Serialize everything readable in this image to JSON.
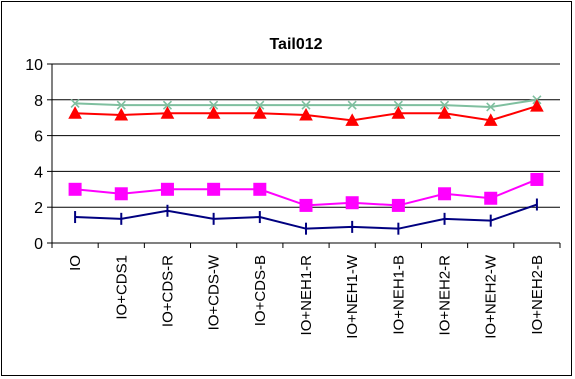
{
  "chart_data": {
    "type": "line",
    "title": "Tail012",
    "xlabel": "",
    "ylabel": "",
    "ylim": [
      0,
      10
    ],
    "yticks": [
      "0",
      "2",
      "4",
      "6",
      "8",
      "10"
    ],
    "grid": "horizontal",
    "legend": "none",
    "categories": [
      "IO",
      "IO+CDS1",
      "IO+CDS-R",
      "IO+CDS-W",
      "IO+CDS-B",
      "IO+NEH1-R",
      "IO+NEH1-W",
      "IO+NEH1-B",
      "IO+NEH2-R",
      "IO+NEH2-W",
      "IO+NEH2-B"
    ],
    "series": [
      {
        "color": "#7fbf9f",
        "marker": "x",
        "values": [
          7.8,
          7.7,
          7.7,
          7.7,
          7.7,
          7.7,
          7.7,
          7.7,
          7.7,
          7.6,
          8.0
        ]
      },
      {
        "color": "#ff0000",
        "marker": "triangle",
        "values": [
          7.25,
          7.15,
          7.25,
          7.25,
          7.25,
          7.15,
          6.85,
          7.25,
          7.25,
          6.85,
          7.65
        ]
      },
      {
        "color": "#ff00ff",
        "marker": "square",
        "values": [
          3.0,
          2.75,
          3.0,
          3.0,
          3.0,
          2.1,
          2.25,
          2.1,
          2.75,
          2.5,
          3.55
        ]
      },
      {
        "color": "#000080",
        "marker": "tick",
        "values": [
          1.45,
          1.35,
          1.8,
          1.35,
          1.45,
          0.8,
          0.9,
          0.8,
          1.35,
          1.25,
          2.15
        ]
      }
    ]
  }
}
